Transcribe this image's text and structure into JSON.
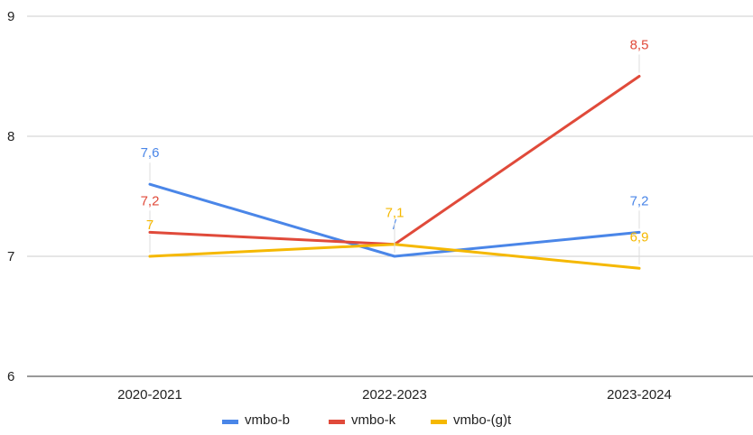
{
  "chart_data": {
    "type": "line",
    "categories": [
      "2020-2021",
      "2022-2023",
      "2023-2024"
    ],
    "y_ticks": [
      6,
      7,
      8,
      9
    ],
    "ylim": [
      6,
      9
    ],
    "grid": true,
    "legend_position": "bottom",
    "series": [
      {
        "name": "vmbo-b",
        "color": "#4a86e8",
        "values": [
          7.6,
          7.0,
          7.2
        ],
        "labels": [
          "7,6",
          "/",
          "7,2"
        ]
      },
      {
        "name": "vmbo-k",
        "color": "#e04a3a",
        "values": [
          7.2,
          7.1,
          8.5
        ],
        "labels": [
          "7,2",
          "",
          "8,5"
        ]
      },
      {
        "name": "vmbo-(g)t",
        "color": "#f5b800",
        "values": [
          7.0,
          7.1,
          6.9
        ],
        "labels": [
          "7",
          "7,1",
          "6,9"
        ]
      }
    ]
  }
}
